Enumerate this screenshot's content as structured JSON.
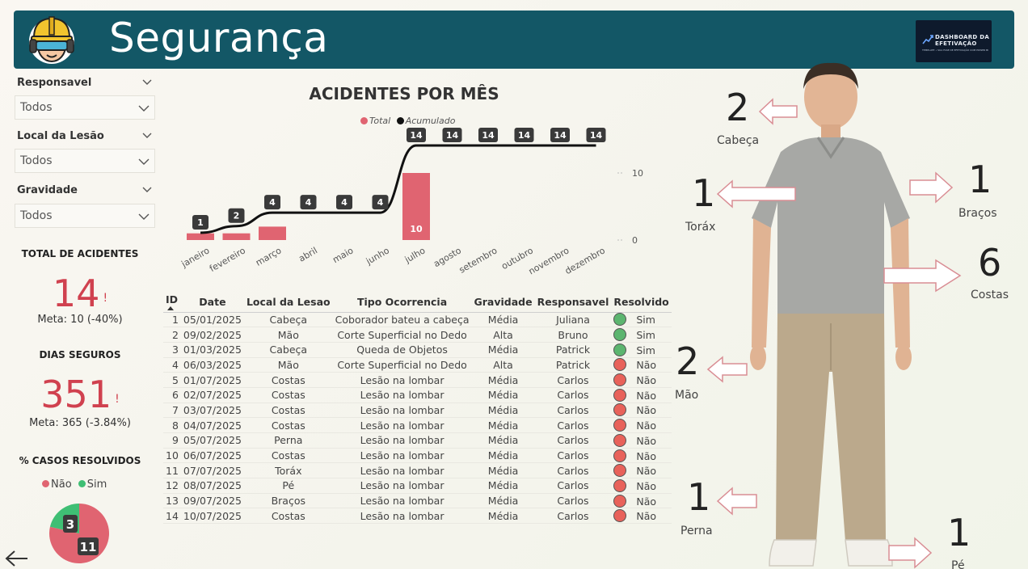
{
  "header": {
    "title": "Segurança",
    "brand": {
      "line1": "DASHBOARD DA",
      "line2": "EFETIVAÇÃO",
      "tagline": "TEMPLATE • SUA FASE DE EFETIVAÇÃO COM POWER BI"
    }
  },
  "filters": [
    {
      "label": "Responsavel",
      "value": "Todos"
    },
    {
      "label": "Local da Lesão",
      "value": "Todos"
    },
    {
      "label": "Gravidade",
      "value": "Todos"
    }
  ],
  "kpis": {
    "total": {
      "title": "TOTAL DE ACIDENTES",
      "value": "14",
      "alert": "!",
      "goal": "Meta: 10 (-40%)"
    },
    "safe_days": {
      "title": "DIAS SEGUROS",
      "value": "351",
      "alert": "!",
      "goal": "Meta: 365 (-3.84%)"
    }
  },
  "resolved": {
    "title": "% CASOS RESOLVIDOS",
    "legend": [
      {
        "name": "Não",
        "color": "#e06471"
      },
      {
        "name": "Sim",
        "color": "#3fbf74"
      }
    ],
    "values": {
      "Não": 11,
      "Sim": 3
    }
  },
  "chart_data": {
    "type": "bar",
    "title": "ACIDENTES POR MÊS",
    "categories": [
      "janeiro",
      "fevereiro",
      "março",
      "abril",
      "maio",
      "junho",
      "julho",
      "agosto",
      "setembro",
      "outubro",
      "novembro",
      "dezembro"
    ],
    "series": [
      {
        "name": "Total",
        "type": "bar",
        "color": "#e06471",
        "values": [
          1,
          1,
          2,
          0,
          0,
          0,
          10,
          0,
          0,
          0,
          0,
          0
        ]
      },
      {
        "name": "Acumulado",
        "type": "line",
        "color": "#111111",
        "values": [
          1,
          2,
          4,
          4,
          4,
          4,
          14,
          14,
          14,
          14,
          14,
          14
        ]
      }
    ],
    "bar_labels": {
      "6": "10"
    },
    "yticks": [
      0,
      10
    ],
    "ylim": [
      0,
      14
    ],
    "legend": "top-center"
  },
  "table": {
    "columns": [
      "ID",
      "Date",
      "Local da Lesao",
      "Tipo Ocorrencia",
      "Gravidade",
      "Responsavel",
      "Resolvido"
    ],
    "rows": [
      [
        "1",
        "05/01/2025",
        "Cabeça",
        "Coborador bateu a cabeça",
        "Média",
        "Juliana",
        "Sim"
      ],
      [
        "2",
        "09/02/2025",
        "Mão",
        "Corte Superficial no Dedo",
        "Alta",
        "Bruno",
        "Sim"
      ],
      [
        "3",
        "01/03/2025",
        "Cabeça",
        "Queda de Objetos",
        "Média",
        "Patrick",
        "Sim"
      ],
      [
        "4",
        "06/03/2025",
        "Mão",
        "Corte Superficial no Dedo",
        "Alta",
        "Patrick",
        "Não"
      ],
      [
        "5",
        "01/07/2025",
        "Costas",
        "Lesão na lombar",
        "Média",
        "Carlos",
        "Não"
      ],
      [
        "6",
        "02/07/2025",
        "Costas",
        "Lesão na lombar",
        "Média",
        "Carlos",
        "Não"
      ],
      [
        "7",
        "03/07/2025",
        "Costas",
        "Lesão na lombar",
        "Média",
        "Carlos",
        "Não"
      ],
      [
        "8",
        "04/07/2025",
        "Costas",
        "Lesão na lombar",
        "Média",
        "Carlos",
        "Não"
      ],
      [
        "9",
        "05/07/2025",
        "Perna",
        "Lesão na lombar",
        "Média",
        "Carlos",
        "Não"
      ],
      [
        "10",
        "06/07/2025",
        "Costas",
        "Lesão na lombar",
        "Média",
        "Carlos",
        "Não"
      ],
      [
        "11",
        "07/07/2025",
        "Toráx",
        "Lesão na lombar",
        "Média",
        "Carlos",
        "Não"
      ],
      [
        "12",
        "08/07/2025",
        "Pé",
        "Lesão na lombar",
        "Média",
        "Carlos",
        "Não"
      ],
      [
        "13",
        "09/07/2025",
        "Braços",
        "Lesão na lombar",
        "Média",
        "Carlos",
        "Não"
      ],
      [
        "14",
        "10/07/2025",
        "Costas",
        "Lesão na lombar",
        "Média",
        "Carlos",
        "Não"
      ]
    ],
    "status_colors": {
      "Sim": "#5cb56f",
      "Não": "#e8625a"
    }
  },
  "body_parts": [
    {
      "name": "Cabeça",
      "count": "2"
    },
    {
      "name": "Torax",
      "label": "Toráx",
      "count": "1"
    },
    {
      "name": "Braços",
      "count": "1"
    },
    {
      "name": "Costas",
      "count": "6"
    },
    {
      "name": "Mão",
      "count": "2"
    },
    {
      "name": "Perna",
      "count": "1"
    },
    {
      "name": "Pé",
      "count": "1"
    }
  ]
}
